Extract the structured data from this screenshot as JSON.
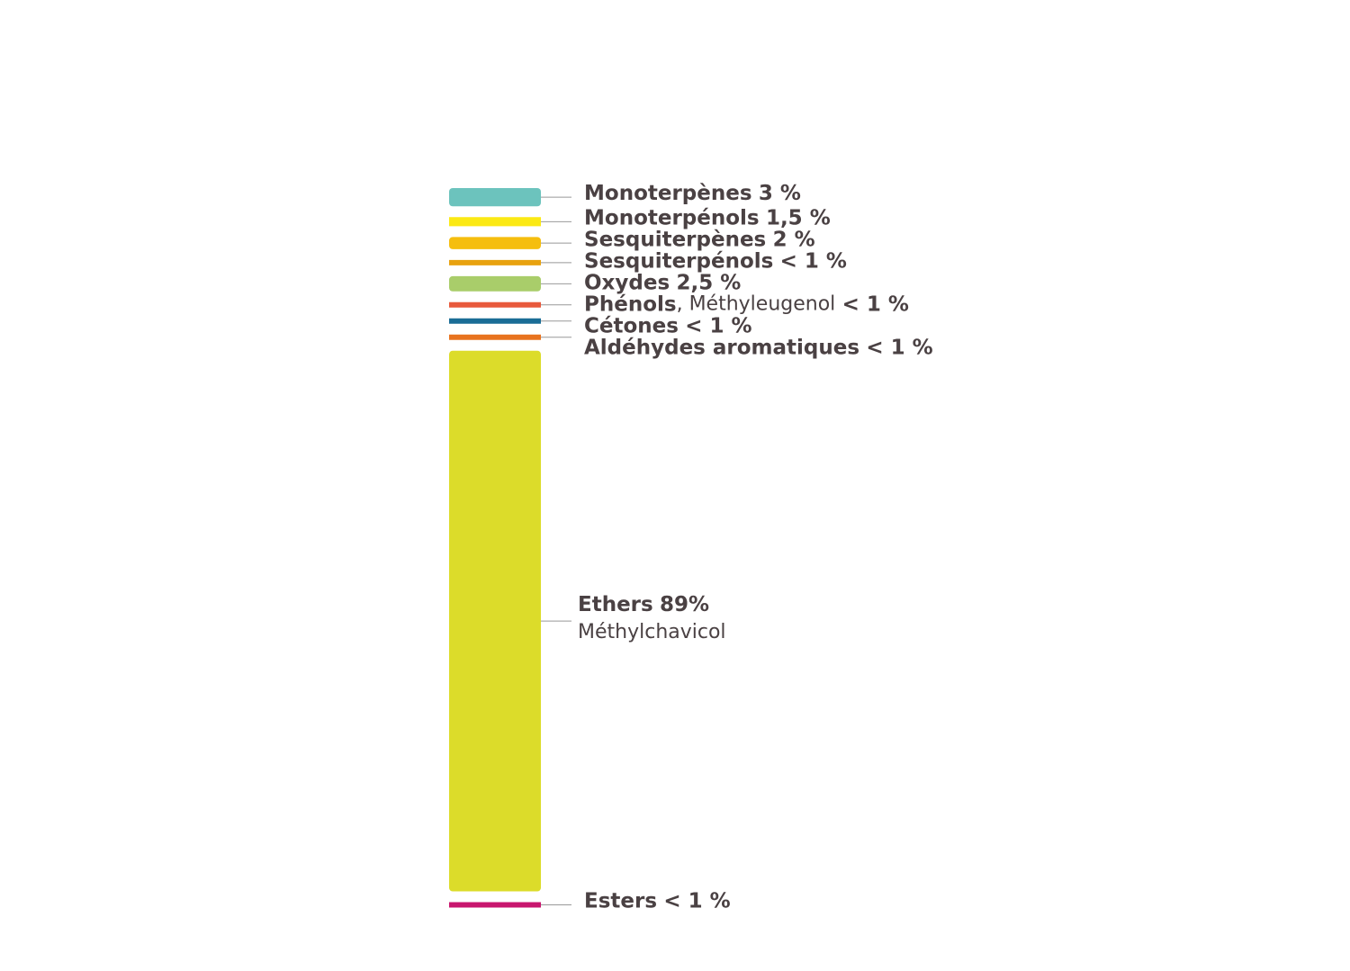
{
  "chart_data": {
    "type": "stacked-column",
    "categories": [
      "Monoterpènes",
      "Monoterpénols",
      "Sesquiterpènes",
      "Sesquiterpénols",
      "Oxydes",
      "Phénols",
      "Cétones",
      "Aldéhydes aromatiques",
      "Ethers",
      "Esters"
    ],
    "notes": [
      null,
      null,
      null,
      null,
      null,
      ", Méthyleugenol",
      null,
      null,
      "Méthylchavicol",
      null
    ],
    "values": [
      3,
      1.5,
      2,
      null,
      2.5,
      null,
      null,
      null,
      89,
      null
    ],
    "value_labels": [
      "3 %",
      "1,5 %",
      "2 %",
      "< 1 %",
      "2,5 %",
      "< 1 %",
      "< 1 %",
      "< 1 %",
      "89%",
      "< 1 %"
    ],
    "colors": [
      "#6cc3bd",
      "#fbe914",
      "#f5be0e",
      "#e8a20f",
      "#a9cd6a",
      "#e85a3c",
      "#1a6d96",
      "#e8731e",
      "#dcdc2a",
      "#c8166e"
    ]
  }
}
